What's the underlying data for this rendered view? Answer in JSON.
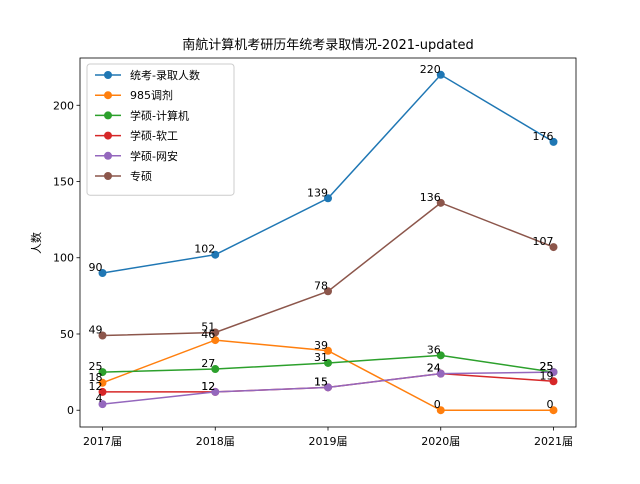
{
  "chart_data": {
    "type": "line",
    "title": "南航计算机考研历年统考录取情况-2021-updated",
    "xlabel": "",
    "ylabel": "人数",
    "categories": [
      "2017届",
      "2018届",
      "2019届",
      "2020届",
      "2021届"
    ],
    "ylim": [
      -11,
      231
    ],
    "yticks": [
      0,
      50,
      100,
      150,
      200
    ],
    "legend_position": "top-left",
    "series": [
      {
        "name": "统考-录取人数",
        "color": "#1f77b4",
        "values": [
          90,
          102,
          139,
          220,
          176
        ]
      },
      {
        "name": "985调剂",
        "color": "#ff7f0e",
        "values": [
          18,
          46,
          39,
          0,
          0
        ]
      },
      {
        "name": "学硕-计算机",
        "color": "#2ca02c",
        "values": [
          25,
          27,
          31,
          36,
          25
        ]
      },
      {
        "name": "学硕-软工",
        "color": "#d62728",
        "values": [
          12,
          12,
          15,
          24,
          19
        ]
      },
      {
        "name": "学硕-网安",
        "color": "#9467bd",
        "values": [
          4,
          12,
          15,
          24,
          25
        ]
      },
      {
        "name": "专硕",
        "color": "#8c564b",
        "values": [
          49,
          51,
          78,
          136,
          107
        ]
      }
    ]
  }
}
